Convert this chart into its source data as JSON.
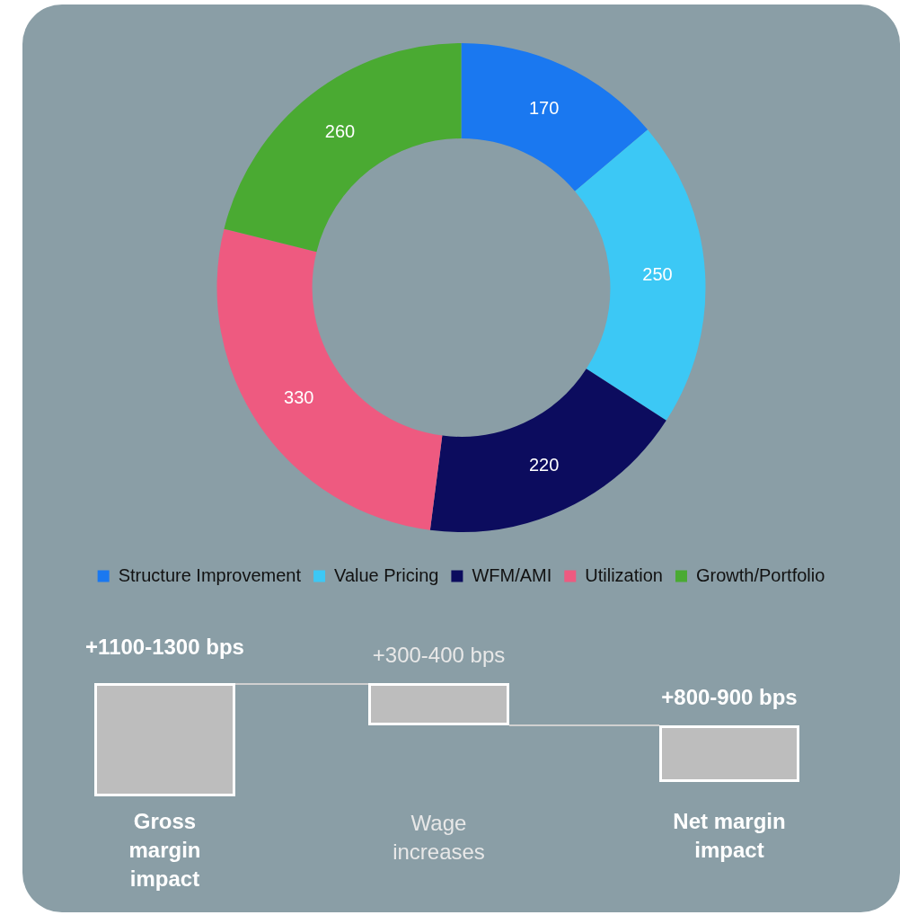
{
  "chart_data": [
    {
      "type": "donut",
      "categories": [
        "Structure Improvement",
        "Value Pricing",
        "WFM/AMI",
        "Utilization",
        "Growth/Portfolio"
      ],
      "values": [
        170,
        250,
        220,
        330,
        260
      ],
      "colors": [
        "#1a78f0",
        "#3cc8f5",
        "#0c0c5e",
        "#ee5a80",
        "#4aaa32"
      ],
      "data_labels": true,
      "legend": "bottom"
    },
    {
      "type": "other",
      "annotations": [
        "+1100-1300 bps",
        "Gross margin impact",
        "+300-400 bps",
        "Wage increases",
        "+800-900 bps",
        "Net margin impact"
      ]
    }
  ]
}
